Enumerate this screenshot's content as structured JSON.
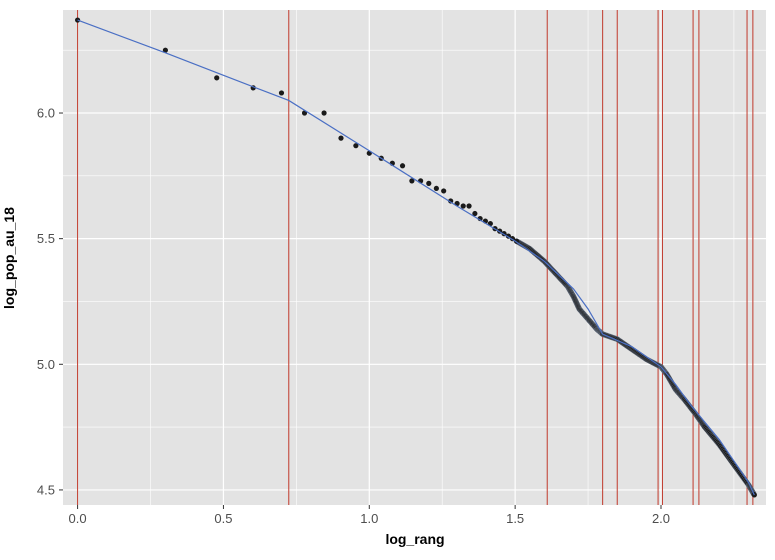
{
  "chart_data": {
    "type": "scatter",
    "title": "",
    "xlabel": "log_rang",
    "ylabel": "log_pop_au_18",
    "xlim": [
      -0.05,
      2.36
    ],
    "ylim": [
      4.44,
      6.41
    ],
    "x_ticks": [
      0.0,
      0.5,
      1.0,
      1.5,
      2.0
    ],
    "x_tick_labels": [
      "0.0",
      "0.5",
      "1.0",
      "1.5",
      "2.0"
    ],
    "y_ticks": [
      4.5,
      5.0,
      5.5,
      6.0
    ],
    "y_tick_labels": [
      "4.5",
      "5.0",
      "5.5",
      "6.0"
    ],
    "grid": true,
    "legend": "none",
    "colors": {
      "panel": "#e3e3e3",
      "grid": "#ffffff",
      "points": "#1a1a1a",
      "fit_line": "#4a6fc4",
      "vlines": "#c0392b"
    },
    "vertical_lines_x": [
      0.0,
      0.724,
      1.61,
      1.8,
      1.85,
      1.99,
      2.005,
      2.11,
      2.13,
      2.295,
      2.315
    ],
    "points_x": [
      0.0,
      0.301,
      0.477,
      0.602,
      0.699,
      0.778,
      0.845,
      0.903,
      0.954,
      1.0,
      1.041,
      1.079,
      1.114,
      1.146,
      1.176,
      1.204,
      1.23,
      1.255,
      1.279,
      1.301,
      1.322,
      1.342,
      1.362,
      1.38,
      1.398,
      1.415,
      1.431,
      1.447,
      1.462,
      1.477,
      1.491,
      1.505
    ],
    "points_y": [
      6.37,
      6.25,
      6.14,
      6.1,
      6.08,
      6.0,
      6.0,
      5.9,
      5.87,
      5.84,
      5.82,
      5.8,
      5.79,
      5.73,
      5.73,
      5.72,
      5.7,
      5.69,
      5.65,
      5.64,
      5.63,
      5.63,
      5.6,
      5.58,
      5.57,
      5.56,
      5.54,
      5.53,
      5.52,
      5.51,
      5.5,
      5.49
    ],
    "dense_curve": {
      "x": [
        1.505,
        1.55,
        1.6,
        1.64,
        1.68,
        1.7,
        1.72,
        1.75,
        1.78,
        1.8,
        1.85,
        1.9,
        1.95,
        2.0,
        2.02,
        2.05,
        2.08,
        2.12,
        2.15,
        2.2,
        2.25,
        2.3,
        2.32
      ],
      "y": [
        5.49,
        5.46,
        5.41,
        5.36,
        5.31,
        5.27,
        5.22,
        5.18,
        5.14,
        5.12,
        5.1,
        5.06,
        5.02,
        4.99,
        4.96,
        4.9,
        4.86,
        4.8,
        4.75,
        4.68,
        4.6,
        4.52,
        4.48
      ]
    },
    "fit_line": {
      "x": [
        0.0,
        0.3,
        0.5,
        0.724,
        1.0,
        1.3,
        1.5,
        1.6,
        1.7,
        1.75,
        1.8,
        1.9,
        2.0,
        2.05,
        2.1,
        2.2,
        2.3,
        2.32
      ],
      "y": [
        6.37,
        6.24,
        6.15,
        6.05,
        5.85,
        5.63,
        5.49,
        5.41,
        5.3,
        5.22,
        5.12,
        5.07,
        4.99,
        4.92,
        4.84,
        4.7,
        4.53,
        4.48
      ]
    }
  }
}
